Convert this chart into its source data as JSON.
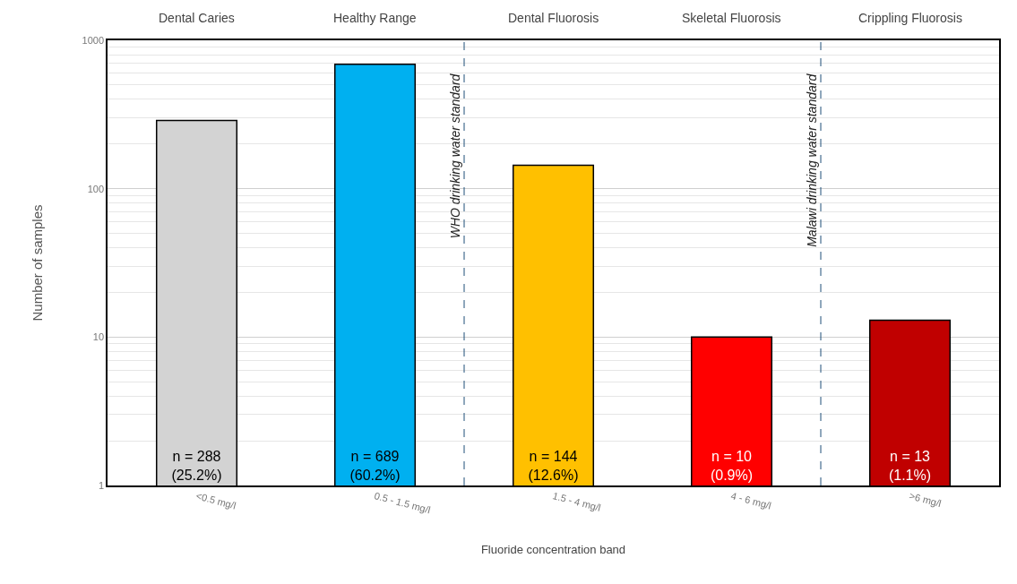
{
  "chart_data": {
    "type": "bar",
    "xlabel": "Fluoride concentration band",
    "ylabel": "Number of samples",
    "categories": [
      "<0.5 mg/l",
      "0.5 - 1.5 mg/l",
      "1.5 - 4 mg/l",
      "4 - 6 mg/l",
      ">6 mg/l"
    ],
    "values": [
      288,
      689,
      144,
      10,
      13
    ],
    "colors": [
      "#d3d3d3",
      "#00b0f0",
      "#ffc000",
      "#ff0000",
      "#c00000"
    ],
    "value_labels": [
      "n = 288\n(25.2%)",
      "n = 689\n(60.2%)",
      "n = 144\n(12.6%)",
      "n = 10\n(0.9%)",
      "n = 13\n(1.1%)"
    ],
    "annotations": [
      "Dental Caries",
      "Healthy Range",
      "Dental Fluorosis",
      "Skeletal Fluorosis",
      "Crippling Fluorosis",
      "WHO drinking water standard",
      "Malawi drinking water standard"
    ],
    "log": "y",
    "ylim": [
      1,
      1000
    ],
    "yticks": [
      1,
      10,
      100,
      1000
    ],
    "grid": "y"
  }
}
